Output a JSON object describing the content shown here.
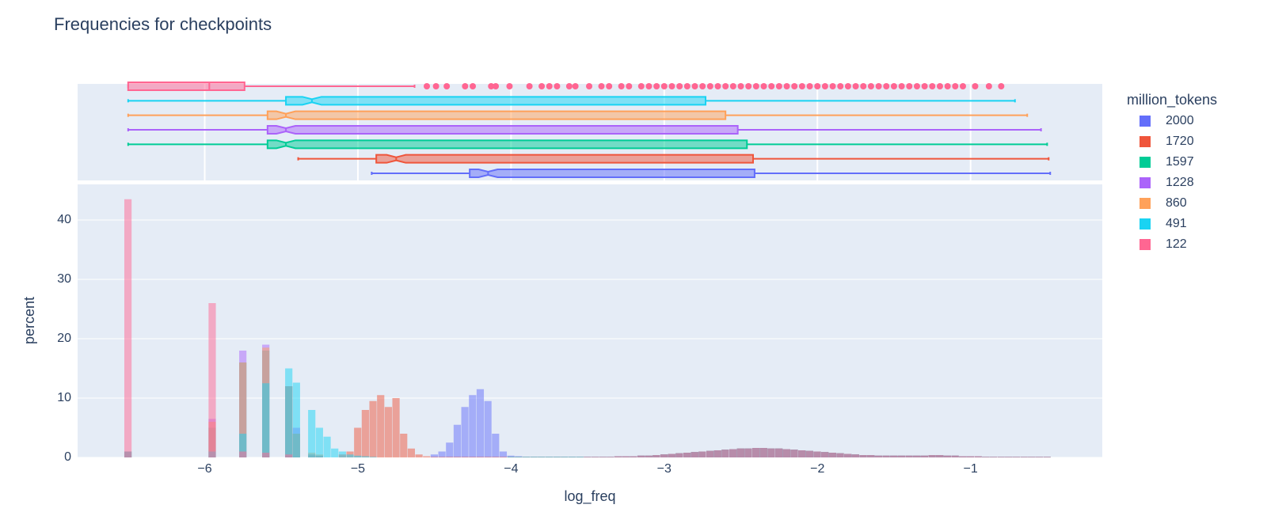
{
  "chart_data": {
    "type": "histogram",
    "title": "Frequencies for checkpoints",
    "xlabel": "log_freq",
    "ylabel": "percent",
    "legend_title": "million_tokens",
    "legend_position": "right",
    "xlim": [
      -6.83,
      -0.14
    ],
    "xticks": [
      {
        "value": -6,
        "label": "−6"
      },
      {
        "value": -5,
        "label": "−5"
      },
      {
        "value": -4,
        "label": "−4"
      },
      {
        "value": -3,
        "label": "−3"
      },
      {
        "value": -2,
        "label": "−2"
      },
      {
        "value": -1,
        "label": "−1"
      }
    ],
    "ylim": [
      0,
      46
    ],
    "yticks": [
      0,
      10,
      20,
      30,
      40
    ],
    "grid": true,
    "opacity": 0.5,
    "bins": [
      -6.525,
      -6.475,
      -6.425,
      -6.375,
      -6.325,
      -6.275,
      -6.225,
      -6.175,
      -6.125,
      -6.075,
      -6.025,
      -5.975,
      -5.925,
      -5.875,
      -5.825,
      -5.775,
      -5.725,
      -5.675,
      -5.625,
      -5.575,
      -5.525,
      -5.475,
      -5.425,
      -5.375,
      -5.325,
      -5.275,
      -5.225,
      -5.175,
      -5.125,
      -5.075,
      -5.025,
      -4.975,
      -4.925,
      -4.875,
      -4.825,
      -4.775,
      -4.725,
      -4.675,
      -4.625,
      -4.575,
      -4.525,
      -4.475,
      -4.425,
      -4.375,
      -4.325,
      -4.275,
      -4.225,
      -4.175,
      -4.125,
      -4.075,
      -4.025,
      -3.975,
      -3.925,
      -3.875,
      -3.825,
      -3.775,
      -3.725,
      -3.675,
      -3.625,
      -3.575,
      -3.525,
      -3.475,
      -3.425,
      -3.375,
      -3.325,
      -3.275,
      -3.225,
      -3.175,
      -3.125,
      -3.075,
      -3.025,
      -2.975,
      -2.925,
      -2.875,
      -2.825,
      -2.775,
      -2.725,
      -2.675,
      -2.625,
      -2.575,
      -2.525,
      -2.475,
      -2.425,
      -2.375,
      -2.325,
      -2.275,
      -2.225,
      -2.175,
      -2.125,
      -2.075,
      -2.025,
      -1.975,
      -1.925,
      -1.875,
      -1.825,
      -1.775,
      -1.725,
      -1.675,
      -1.625,
      -1.575,
      -1.525,
      -1.475,
      -1.425,
      -1.375,
      -1.325,
      -1.275,
      -1.225,
      -1.175,
      -1.125,
      -1.075,
      -1.025,
      -0.975,
      -0.925,
      -0.875,
      -0.825,
      -0.775,
      -0.725,
      -0.675,
      -0.625,
      -0.575,
      -0.525,
      -0.475
    ],
    "series": [
      {
        "name": "2000",
        "color": "#636efa",
        "notched": true,
        "values": [
          0,
          0,
          0,
          0,
          0,
          0,
          0,
          0,
          0,
          0,
          0,
          0,
          0,
          0,
          0,
          0,
          0,
          0,
          0,
          0,
          0,
          0,
          0,
          0,
          0,
          0,
          0,
          0,
          0,
          0,
          0,
          0,
          0,
          0,
          0,
          0,
          0,
          0,
          0,
          0,
          0.5,
          1,
          2.5,
          5.5,
          8.5,
          10.5,
          11.5,
          9.5,
          4,
          1,
          0.3,
          0.2,
          0.1,
          0.1,
          0.1,
          0.1,
          0.1,
          0.1,
          0.1,
          0.1,
          0.1,
          0.1,
          0.1,
          0.1,
          0.2,
          0.2,
          0.2,
          0.3,
          0.3,
          0.4,
          0.5,
          0.6,
          0.7,
          0.8,
          0.9,
          1,
          1.1,
          1.2,
          1.3,
          1.4,
          1.5,
          1.5,
          1.6,
          1.6,
          1.5,
          1.5,
          1.4,
          1.3,
          1.2,
          1.1,
          1,
          0.9,
          0.8,
          0.7,
          0.6,
          0.5,
          0.4,
          0.4,
          0.3,
          0.3,
          0.3,
          0.3,
          0.3,
          0.3,
          0.3,
          0.4,
          0.4,
          0.3,
          0.3,
          0.2,
          0.2,
          0.2,
          0.1,
          0.1,
          0.1,
          0.1,
          0.1,
          0.1,
          0.1,
          0.1,
          0.1
        ],
        "box": {
          "min": -4.91,
          "q1": -4.27,
          "median": -4.15,
          "q3": -2.41,
          "max": -0.48
        }
      },
      {
        "name": "1720",
        "color": "#EF553B",
        "notched": true,
        "values": [
          0,
          0,
          0,
          0,
          0,
          0,
          0,
          0,
          0,
          0,
          0,
          0,
          0,
          0,
          0,
          0,
          0,
          0,
          0,
          0,
          0,
          0,
          0,
          0,
          0,
          0,
          0,
          0,
          0.5,
          1,
          5,
          8,
          9.5,
          10.5,
          8.5,
          10,
          4,
          1.5,
          0.5,
          0.2,
          0.1,
          0.1,
          0.1,
          0.1,
          0.1,
          0.1,
          0.1,
          0.1,
          0.1,
          0.1,
          0.1,
          0.1,
          0.1,
          0.1,
          0.1,
          0.1,
          0.1,
          0.1,
          0.1,
          0.1,
          0.1,
          0.1,
          0.1,
          0.1,
          0.2,
          0.2,
          0.2,
          0.3,
          0.3,
          0.4,
          0.5,
          0.6,
          0.7,
          0.8,
          0.9,
          1,
          1.1,
          1.2,
          1.3,
          1.4,
          1.5,
          1.5,
          1.6,
          1.6,
          1.5,
          1.5,
          1.4,
          1.3,
          1.2,
          1.1,
          1,
          0.9,
          0.8,
          0.7,
          0.6,
          0.5,
          0.4,
          0.4,
          0.3,
          0.3,
          0.3,
          0.3,
          0.3,
          0.3,
          0.3,
          0.4,
          0.4,
          0.3,
          0.3,
          0.2,
          0.2,
          0.2,
          0.1,
          0.1,
          0.1,
          0.1,
          0.1,
          0.1,
          0.1,
          0.1,
          0.1
        ],
        "box": {
          "min": -5.39,
          "q1": -4.88,
          "median": -4.75,
          "q3": -2.42,
          "max": -0.49
        }
      },
      {
        "name": "1597",
        "color": "#00cc96",
        "notched": true,
        "values": [
          1,
          0,
          0,
          0,
          0,
          0,
          0,
          0,
          0,
          0,
          0,
          5,
          0,
          0,
          0,
          16,
          0,
          0,
          18,
          0,
          0,
          12,
          4,
          0,
          0.5,
          0.3,
          0,
          0,
          0,
          0,
          0,
          0,
          0,
          0,
          0,
          0,
          0,
          0,
          0,
          0,
          0,
          0,
          0,
          0,
          0,
          0,
          0,
          0,
          0,
          0,
          0.1,
          0.1,
          0.1,
          0.1,
          0.1,
          0.1,
          0.1,
          0.1,
          0.1,
          0.1,
          0.1,
          0.1,
          0.1,
          0.1,
          0.2,
          0.2,
          0.2,
          0.3,
          0.3,
          0.4,
          0.5,
          0.6,
          0.7,
          0.8,
          0.9,
          1,
          1.1,
          1.2,
          1.3,
          1.4,
          1.5,
          1.5,
          1.6,
          1.6,
          1.5,
          1.5,
          1.4,
          1.3,
          1.2,
          1.1,
          1,
          0.9,
          0.8,
          0.7,
          0.6,
          0.5,
          0.4,
          0.4,
          0.3,
          0.3,
          0.3,
          0.3,
          0.3,
          0.3,
          0.3,
          0.4,
          0.4,
          0.3,
          0.3,
          0.2,
          0.2,
          0.2,
          0.1,
          0.1,
          0.1,
          0.1,
          0.1,
          0.1,
          0.1,
          0.1,
          0.1
        ],
        "box": {
          "min": -6.5,
          "q1": -5.59,
          "median": -5.47,
          "q3": -2.46,
          "max": -0.5
        }
      },
      {
        "name": "1228",
        "color": "#ab63fa",
        "notched": true,
        "values": [
          1,
          0,
          0,
          0,
          0,
          0,
          0,
          0,
          0,
          0,
          0,
          6.5,
          0,
          0,
          0,
          18,
          0,
          0,
          19,
          0,
          0,
          12,
          5,
          0,
          0.5,
          0.3,
          0,
          0,
          0,
          0,
          0,
          0,
          0,
          0,
          0,
          0,
          0,
          0,
          0,
          0,
          0,
          0,
          0,
          0,
          0,
          0,
          0,
          0,
          0,
          0,
          0.1,
          0.1,
          0.1,
          0.1,
          0.1,
          0.1,
          0.1,
          0.1,
          0.1,
          0.1,
          0.1,
          0.1,
          0.1,
          0.1,
          0.2,
          0.2,
          0.2,
          0.3,
          0.3,
          0.4,
          0.5,
          0.6,
          0.7,
          0.8,
          0.9,
          1,
          1.1,
          1.2,
          1.3,
          1.4,
          1.5,
          1.5,
          1.6,
          1.6,
          1.5,
          1.5,
          1.4,
          1.3,
          1.2,
          1.1,
          1,
          0.9,
          0.8,
          0.7,
          0.6,
          0.5,
          0.4,
          0.4,
          0.3,
          0.3,
          0.3,
          0.3,
          0.3,
          0.3,
          0.3,
          0.4,
          0.4,
          0.3,
          0.3,
          0.2,
          0.2,
          0.2,
          0.1,
          0.1,
          0.1,
          0.1,
          0.1,
          0.1,
          0.1,
          0.1,
          0.1
        ],
        "box": {
          "min": -6.5,
          "q1": -5.59,
          "median": -5.47,
          "q3": -2.52,
          "max": -0.54
        }
      },
      {
        "name": "860",
        "color": "#FFA15A",
        "notched": true,
        "values": [
          1,
          0,
          0,
          0,
          0,
          0,
          0,
          0,
          0,
          0,
          0,
          6,
          0,
          0,
          0,
          16,
          0,
          0,
          18.5,
          0,
          0,
          12,
          4,
          0,
          0.8,
          0.5,
          0,
          0,
          0,
          0,
          0,
          0,
          0,
          0,
          0,
          0,
          0,
          0,
          0,
          0,
          0,
          0,
          0,
          0,
          0,
          0,
          0,
          0,
          0,
          0,
          0.1,
          0.1,
          0.1,
          0.1,
          0.1,
          0.1,
          0.1,
          0.1,
          0.1,
          0.1,
          0.1,
          0.1,
          0.1,
          0.1,
          0.2,
          0.2,
          0.2,
          0.3,
          0.3,
          0.4,
          0.5,
          0.6,
          0.7,
          0.8,
          0.9,
          1,
          1.1,
          1.2,
          1.3,
          1.4,
          1.5,
          1.5,
          1.6,
          1.6,
          1.5,
          1.5,
          1.4,
          1.3,
          1.2,
          1.1,
          1,
          0.9,
          0.8,
          0.7,
          0.6,
          0.5,
          0.4,
          0.4,
          0.3,
          0.3,
          0.3,
          0.3,
          0.3,
          0.3,
          0.3,
          0.4,
          0.4,
          0.3,
          0.3,
          0.2,
          0.2,
          0.2,
          0.1,
          0.1,
          0.1,
          0.1,
          0.1,
          0.1,
          0.1,
          0.1,
          0.1
        ],
        "box": {
          "min": -6.5,
          "q1": -5.59,
          "median": -5.47,
          "q3": -2.6,
          "max": -0.63
        }
      },
      {
        "name": "491",
        "color": "#19d3f3",
        "notched": true,
        "values": [
          1,
          0,
          0,
          0,
          0,
          0,
          0,
          0,
          0,
          0,
          0,
          1,
          0,
          0,
          0,
          4,
          0,
          0,
          12.5,
          0,
          0,
          15,
          12.6,
          0,
          8,
          5,
          3.5,
          1.5,
          1,
          0.5,
          0.3,
          0.2,
          0.1,
          0,
          0,
          0,
          0,
          0,
          0,
          0,
          0,
          0,
          0,
          0,
          0,
          0,
          0,
          0,
          0,
          0,
          0.1,
          0.1,
          0.1,
          0.1,
          0.1,
          0.1,
          0.1,
          0.1,
          0.1,
          0.1,
          0.1,
          0.1,
          0.1,
          0.1,
          0.2,
          0.2,
          0.2,
          0.3,
          0.3,
          0.4,
          0.5,
          0.6,
          0.7,
          0.8,
          0.9,
          1,
          1.1,
          1.2,
          1.3,
          1.4,
          1.5,
          1.5,
          1.6,
          1.6,
          1.5,
          1.5,
          1.4,
          1.3,
          1.2,
          1.1,
          1,
          0.9,
          0.8,
          0.7,
          0.6,
          0.5,
          0.4,
          0.4,
          0.3,
          0.3,
          0.3,
          0.3,
          0.3,
          0.3,
          0.3,
          0.4,
          0.4,
          0.3,
          0.3,
          0.2,
          0.2,
          0.2,
          0.1,
          0.1,
          0.1,
          0.1,
          0.1,
          0.1,
          0.1,
          0.1,
          0.1
        ],
        "box": {
          "min": -6.5,
          "q1": -5.47,
          "median": -5.3,
          "q3": -2.73,
          "max": -0.71
        }
      },
      {
        "name": "122",
        "color": "#FF6692",
        "notched": false,
        "values": [
          43.5,
          0,
          0,
          0,
          0,
          0,
          0,
          0,
          0,
          0,
          0,
          26,
          0,
          0,
          0,
          1,
          0,
          0,
          0.8,
          0,
          0,
          0.5,
          0,
          0,
          0,
          0,
          0,
          0,
          0,
          0,
          0,
          0,
          0,
          0,
          0,
          0,
          0,
          0,
          0,
          0,
          0,
          0,
          0,
          0,
          0,
          0,
          0,
          0,
          0,
          0,
          0,
          0,
          0,
          0,
          0,
          0,
          0,
          0,
          0,
          0,
          0.1,
          0.1,
          0.1,
          0.1,
          0.2,
          0.2,
          0.2,
          0.3,
          0.3,
          0.4,
          0.5,
          0.6,
          0.7,
          0.8,
          0.9,
          1,
          1.1,
          1.2,
          1.3,
          1.4,
          1.5,
          1.5,
          1.6,
          1.6,
          1.5,
          1.5,
          1.4,
          1.3,
          1.2,
          1.1,
          1,
          0.9,
          0.8,
          0.7,
          0.6,
          0.5,
          0.4,
          0.4,
          0.3,
          0.3,
          0.3,
          0.3,
          0.3,
          0.3,
          0.3,
          0.4,
          0.4,
          0.3,
          0.3,
          0.2,
          0.2,
          0.2,
          0.1,
          0.1,
          0.1,
          0.1,
          0.1,
          0.1,
          0.1,
          0.1,
          0.1
        ],
        "box": {
          "min": -6.5,
          "q1": -6.5,
          "median": -5.97,
          "q3": -5.74,
          "max": -4.63,
          "outliers": [
            -4.55,
            -4.49,
            -4.42,
            -4.3,
            -4.25,
            -4.13,
            -4.1,
            -4.01,
            -3.88,
            -3.8,
            -3.75,
            -3.7,
            -3.62,
            -3.58,
            -3.49,
            -3.41,
            -3.36,
            -3.28,
            -3.23,
            -3.15,
            -3.1,
            -3.05,
            -3,
            -2.95,
            -2.9,
            -2.85,
            -2.8,
            -2.75,
            -2.7,
            -2.65,
            -2.6,
            -2.55,
            -2.5,
            -2.45,
            -2.4,
            -2.35,
            -2.3,
            -2.25,
            -2.2,
            -2.15,
            -2.1,
            -2.05,
            -2,
            -1.95,
            -1.9,
            -1.85,
            -1.8,
            -1.75,
            -1.7,
            -1.65,
            -1.6,
            -1.55,
            -1.5,
            -1.45,
            -1.4,
            -1.35,
            -1.3,
            -1.25,
            -1.2,
            -1.15,
            -1.1,
            -1.05,
            -0.97,
            -0.88,
            -0.8
          ]
        }
      }
    ]
  }
}
